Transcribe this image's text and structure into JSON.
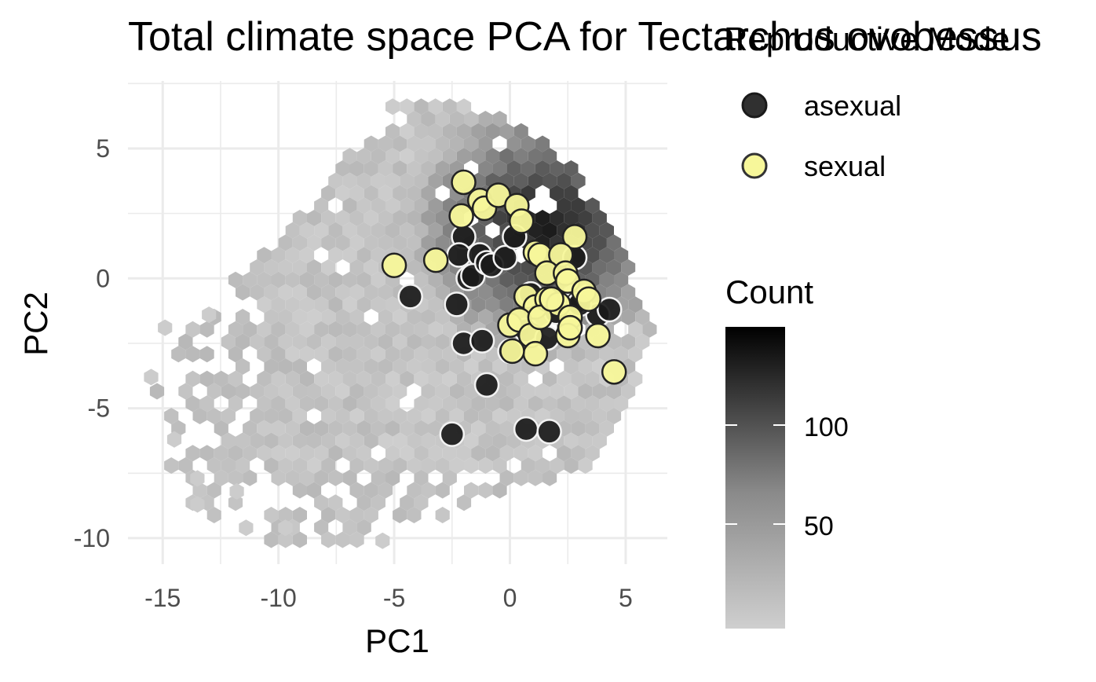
{
  "chart_data": {
    "type": "scatter",
    "title": "Total climate space PCA for Tectarchus ovobessus",
    "xlabel": "PC1",
    "ylabel": "PC2",
    "xlim": [
      -16.5,
      6.8
    ],
    "ylim": [
      -11.0,
      7.6
    ],
    "x_ticks": [
      -15,
      -10,
      -5,
      0,
      5
    ],
    "x_tick_labels": [
      "-15",
      "-10",
      "-5",
      "0",
      "5"
    ],
    "y_ticks": [
      5,
      0,
      -5,
      -10
    ],
    "y_tick_labels": [
      "5",
      "0",
      "-5",
      "-10"
    ],
    "grid": true,
    "legend_mode": {
      "title": "Reproductive Mode",
      "placement": "right",
      "items": [
        {
          "label": "asexual",
          "color": "#1a1a1a"
        },
        {
          "label": "sexual",
          "color": "#f7f79a"
        }
      ]
    },
    "legend_count": {
      "title": "Count",
      "placement": "right",
      "range": [
        1,
        146
      ],
      "ticks": [
        100,
        50
      ],
      "tick_labels": [
        "100",
        "50"
      ],
      "low_color": "#cfcfcf",
      "high_color": "#000000"
    },
    "background_hexbin": {
      "description": "hexagonal density of climate space background points",
      "extent_note": "grey hexagons"
    },
    "series": [
      {
        "name": "asexual",
        "color": "#1a1a1a",
        "points": [
          [
            -2.0,
            1.6
          ],
          [
            -2.2,
            0.9
          ],
          [
            -1.3,
            0.9
          ],
          [
            -1.8,
            0.0
          ],
          [
            -1.6,
            0.1
          ],
          [
            -1.0,
            0.6
          ],
          [
            -0.8,
            0.5
          ],
          [
            -0.2,
            0.8
          ],
          [
            0.2,
            1.6
          ],
          [
            -4.3,
            -0.7
          ],
          [
            -2.3,
            -1.0
          ],
          [
            -2.0,
            -2.5
          ],
          [
            -1.2,
            -2.4
          ],
          [
            -1.0,
            -4.1
          ],
          [
            0.0,
            -2.8
          ],
          [
            0.7,
            -2.0
          ],
          [
            1.1,
            -1.1
          ],
          [
            1.6,
            -2.3
          ],
          [
            2.0,
            -1.3
          ],
          [
            2.8,
            0.8
          ],
          [
            2.9,
            -0.9
          ],
          [
            3.8,
            -1.4
          ],
          [
            4.3,
            -1.2
          ],
          [
            -2.5,
            -6.0
          ],
          [
            0.7,
            -5.8
          ],
          [
            1.7,
            -5.9
          ],
          [
            3.0,
            -1.0
          ],
          [
            0.9,
            -0.6
          ]
        ]
      },
      {
        "name": "sexual",
        "color": "#f7f79a",
        "points": [
          [
            -2.0,
            3.7
          ],
          [
            -2.1,
            2.4
          ],
          [
            -1.3,
            3.0
          ],
          [
            -1.1,
            2.7
          ],
          [
            -0.5,
            3.2
          ],
          [
            0.3,
            2.8
          ],
          [
            0.5,
            2.2
          ],
          [
            2.8,
            1.6
          ],
          [
            -5.0,
            0.5
          ],
          [
            -3.2,
            0.7
          ],
          [
            1.1,
            1.0
          ],
          [
            1.3,
            0.9
          ],
          [
            2.2,
            0.9
          ],
          [
            1.6,
            0.2
          ],
          [
            2.4,
            0.2
          ],
          [
            2.5,
            -0.1
          ],
          [
            3.2,
            -0.5
          ],
          [
            3.4,
            -0.8
          ],
          [
            0.7,
            -0.7
          ],
          [
            1.1,
            -1.1
          ],
          [
            1.6,
            -0.8
          ],
          [
            2.1,
            -1.0
          ],
          [
            2.6,
            -1.5
          ],
          [
            2.5,
            -2.2
          ],
          [
            0.0,
            -1.8
          ],
          [
            0.4,
            -1.6
          ],
          [
            0.9,
            -2.2
          ],
          [
            1.3,
            -1.5
          ],
          [
            1.1,
            -2.9
          ],
          [
            3.8,
            -2.2
          ],
          [
            4.5,
            -3.6
          ],
          [
            2.6,
            -1.9
          ],
          [
            0.1,
            -2.8
          ],
          [
            1.8,
            -0.8
          ]
        ]
      }
    ]
  }
}
